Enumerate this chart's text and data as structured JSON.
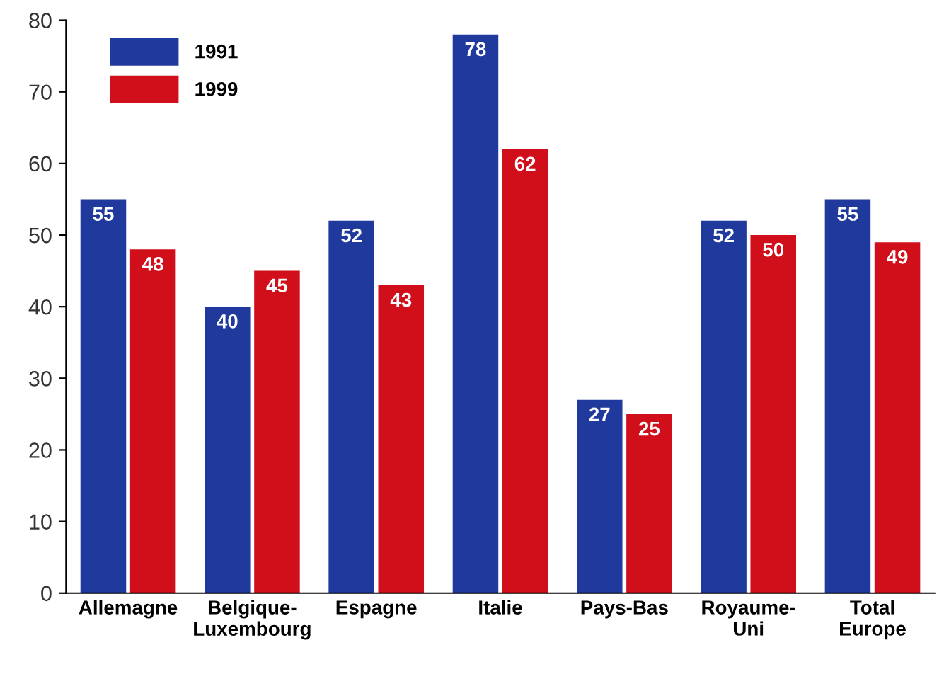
{
  "chart_data": {
    "type": "bar",
    "categories": [
      "Allemagne",
      "Belgique-\nLuxembourg",
      "Espagne",
      "Italie",
      "Pays-Bas",
      "Royaume-\nUni",
      "Total\nEurope"
    ],
    "series": [
      {
        "name": "1991",
        "color": "#1f3a9c",
        "values": [
          55,
          40,
          52,
          78,
          27,
          52,
          55
        ]
      },
      {
        "name": "1999",
        "color": "#d10f1b",
        "values": [
          48,
          45,
          43,
          62,
          25,
          50,
          49
        ]
      }
    ],
    "ylim": [
      0,
      80
    ],
    "yticks": [
      0,
      10,
      20,
      30,
      40,
      50,
      60,
      70,
      80
    ],
    "grid": false,
    "legend": "top left",
    "data_labels": true
  }
}
